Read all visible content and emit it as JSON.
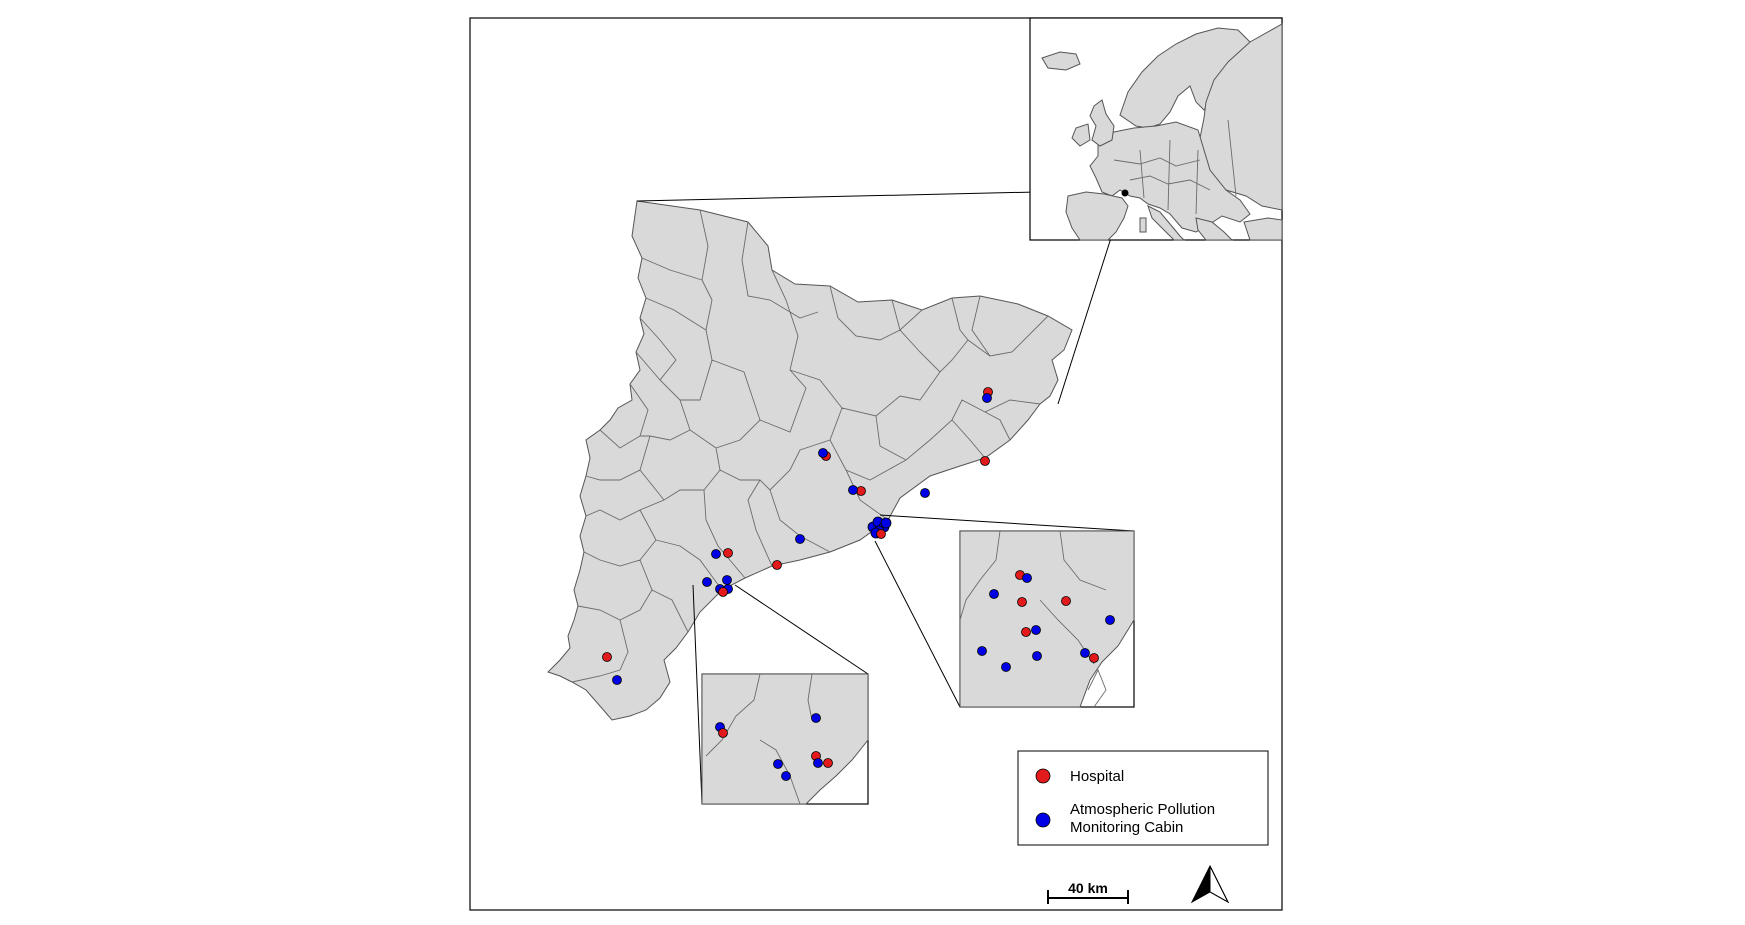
{
  "legend": {
    "hospital_label": "Hospital",
    "cabin_label_line1": "Atmospheric Pollution",
    "cabin_label_line2": "Monitoring Cabin"
  },
  "scale_bar": {
    "label": "40 km"
  },
  "colors": {
    "hospital": "#e31a1c",
    "cabin": "#0000e6",
    "land": "#d9d9d9",
    "border": "#555555"
  },
  "icons": {
    "north_arrow": "north-arrow-icon"
  }
}
